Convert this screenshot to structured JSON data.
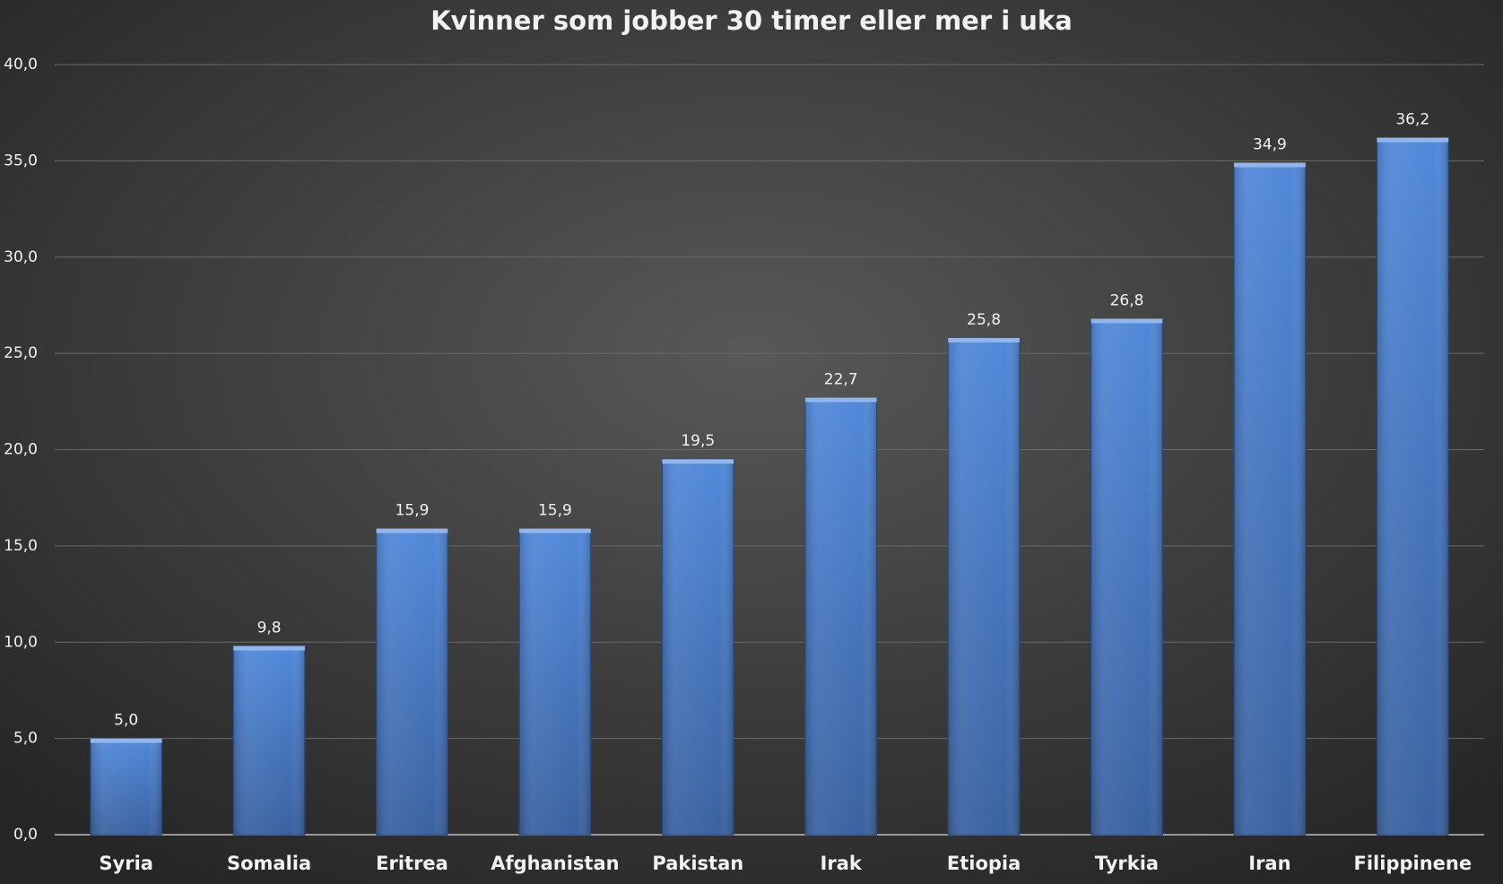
{
  "chart_data": {
    "type": "bar",
    "title": "Kvinner som jobber 30 timer eller mer i uka",
    "categories": [
      "Syria",
      "Somalia",
      "Eritrea",
      "Afghanistan",
      "Pakistan",
      "Irak",
      "Etiopia",
      "Tyrkia",
      "Iran",
      "Filippinene"
    ],
    "values": [
      5.0,
      9.8,
      15.9,
      15.9,
      19.5,
      22.7,
      25.8,
      26.8,
      34.9,
      36.2
    ],
    "value_labels": [
      "5,0",
      "9,8",
      "15,9",
      "15,9",
      "19,5",
      "22,7",
      "25,8",
      "26,8",
      "34,9",
      "36,2"
    ],
    "color": "#4a7cc9",
    "ylim": [
      0,
      40
    ],
    "yticks": [
      {
        "value": 0,
        "label": "0,0"
      },
      {
        "value": 5,
        "label": "5,0"
      },
      {
        "value": 10,
        "label": "10,0"
      },
      {
        "value": 15,
        "label": "15,0"
      },
      {
        "value": 20,
        "label": "20,0"
      },
      {
        "value": 25,
        "label": "25,0"
      },
      {
        "value": 30,
        "label": "30,0"
      },
      {
        "value": 35,
        "label": "35,0"
      },
      {
        "value": 40,
        "label": "40,0"
      }
    ],
    "grid": true
  }
}
